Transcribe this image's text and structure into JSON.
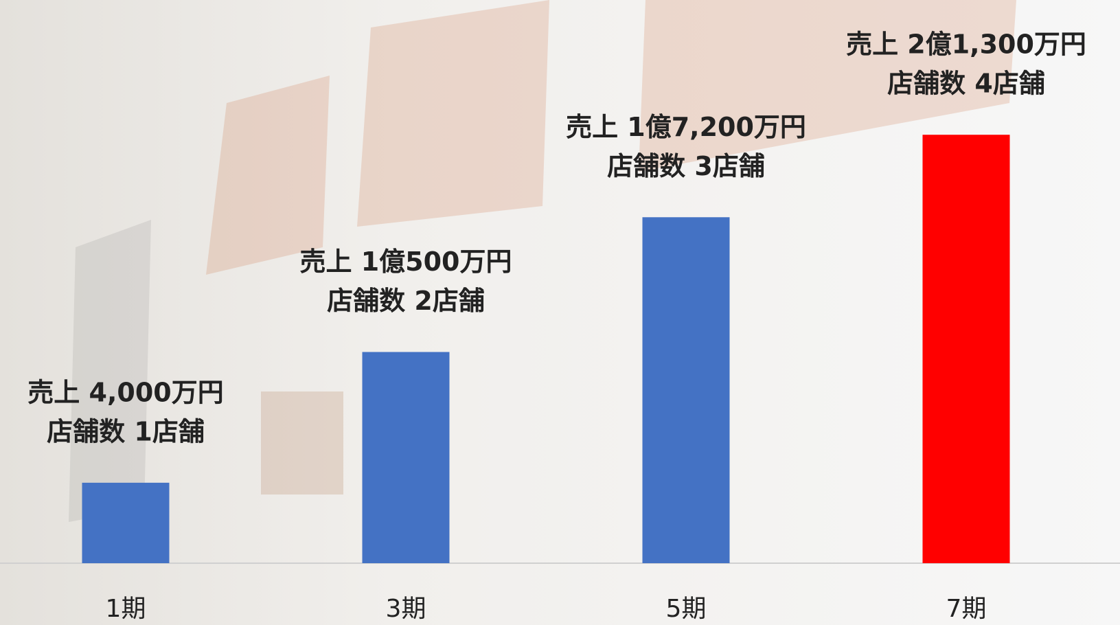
{
  "chart_data": {
    "type": "bar",
    "categories": [
      "1期",
      "3期",
      "5期",
      "7期"
    ],
    "values": [
      4000,
      10500,
      17200,
      21300
    ],
    "value_labels": [
      "売上 4,000万円",
      "売上 1億500万円",
      "売上 1億7,200万円",
      "売上 2億1,300万円"
    ],
    "annotations": [
      "店舗数 1店舗",
      "店舗数 2店舗",
      "店舗数 3店舗",
      "店舗数 4店舗"
    ],
    "colors": [
      "#4472c4",
      "#4472c4",
      "#4472c4",
      "#ff0000"
    ],
    "ylim": [
      0,
      28000
    ]
  }
}
